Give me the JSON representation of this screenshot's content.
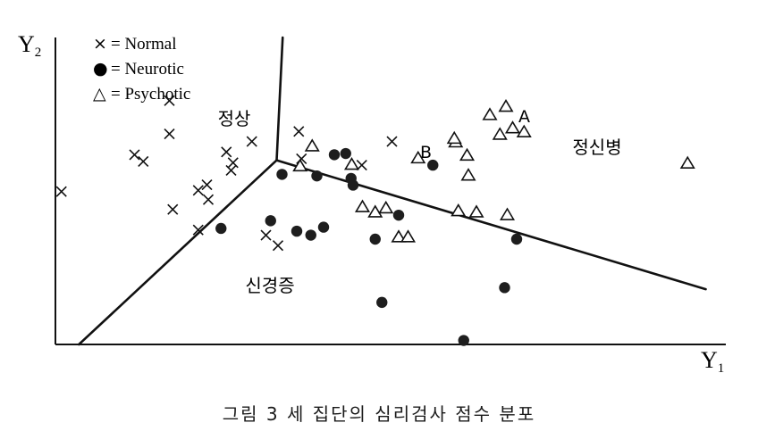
{
  "caption": "그림 3  세 집단의 심리검사 점수 분포",
  "chart_data": {
    "type": "scatter",
    "xlabel": "Y",
    "xlabel_sub": "1",
    "ylabel": "Y",
    "ylabel_sub": "2",
    "xlim": [
      0,
      100
    ],
    "ylim": [
      0,
      100
    ],
    "grid": false,
    "legend": {
      "placement": "top-left",
      "entries": [
        {
          "symbol": "×",
          "label": "= Normal",
          "series": "normal"
        },
        {
          "symbol": "●",
          "label": "= Neurotic",
          "series": "neurotic"
        },
        {
          "symbol": "△",
          "label": "= Psychotic",
          "series": "psychotic"
        }
      ]
    },
    "region_labels": [
      {
        "text": "정상",
        "x": 26.4,
        "y": 72.8
      },
      {
        "text": "정신병",
        "x": 84.5,
        "y": 64.3
      },
      {
        "text": "신경증",
        "x": 31.9,
        "y": 19.3
      }
    ],
    "point_labels": [
      {
        "text": "A",
        "x": 70.9,
        "y": 76.8
      },
      {
        "text": "B",
        "x": 56.4,
        "y": 64.7
      }
    ],
    "boundaries": [
      {
        "name": "normal-psychotic",
        "points": [
          [
            33.9,
            100
          ],
          [
            33.0,
            60
          ]
        ]
      },
      {
        "name": "normal-neurotic",
        "points": [
          [
            33.0,
            60
          ],
          [
            3.5,
            0
          ]
        ]
      },
      {
        "name": "neurotic-psychotic",
        "points": [
          [
            33.0,
            60
          ],
          [
            97.0,
            18
          ]
        ]
      }
    ],
    "series": [
      {
        "key": "normal",
        "marker": "x",
        "points": [
          [
            0.9,
            49.8
          ],
          [
            11.8,
            61.8
          ],
          [
            13.1,
            59.6
          ],
          [
            17.0,
            79.4
          ],
          [
            17.0,
            68.6
          ],
          [
            17.5,
            44.0
          ],
          [
            25.5,
            62.7
          ],
          [
            26.2,
            56.7
          ],
          [
            21.3,
            50.2
          ],
          [
            22.6,
            52.0
          ],
          [
            26.5,
            59.2
          ],
          [
            21.3,
            37.3
          ],
          [
            22.8,
            47.2
          ],
          [
            29.3,
            66.1
          ],
          [
            31.4,
            35.6
          ],
          [
            33.2,
            32.2
          ],
          [
            36.3,
            69.4
          ],
          [
            36.7,
            60.5
          ],
          [
            45.7,
            58.4
          ],
          [
            50.2,
            66.1
          ]
        ]
      },
      {
        "key": "neurotic",
        "marker": "circle",
        "points": [
          [
            24.7,
            37.8
          ],
          [
            33.8,
            55.4
          ],
          [
            39.0,
            54.9
          ],
          [
            32.1,
            40.3
          ],
          [
            36.0,
            36.9
          ],
          [
            38.1,
            35.6
          ],
          [
            40.0,
            38.2
          ],
          [
            41.6,
            61.8
          ],
          [
            43.3,
            62.2
          ],
          [
            44.1,
            54.1
          ],
          [
            44.4,
            51.9
          ],
          [
            47.7,
            34.3
          ],
          [
            51.2,
            42.1
          ],
          [
            48.7,
            13.7
          ],
          [
            56.3,
            58.4
          ],
          [
            68.8,
            34.3
          ],
          [
            67.0,
            18.5
          ],
          [
            60.9,
            1.3
          ]
        ]
      },
      {
        "key": "psychotic",
        "marker": "triangle",
        "points": [
          [
            38.3,
            64.4
          ],
          [
            36.5,
            57.9
          ],
          [
            44.2,
            58.4
          ],
          [
            45.8,
            44.6
          ],
          [
            47.7,
            42.9
          ],
          [
            49.3,
            44.2
          ],
          [
            51.2,
            34.8
          ],
          [
            52.6,
            34.8
          ],
          [
            54.1,
            60.5
          ],
          [
            59.7,
            65.7
          ],
          [
            61.4,
            61.4
          ],
          [
            61.6,
            54.9
          ],
          [
            60.1,
            43.3
          ],
          [
            62.8,
            42.9
          ],
          [
            66.3,
            68.2
          ],
          [
            64.8,
            74.6
          ],
          [
            67.2,
            77.3
          ],
          [
            67.4,
            42.0
          ],
          [
            69.9,
            69.0
          ],
          [
            68.2,
            70.3
          ],
          [
            94.3,
            58.8
          ],
          [
            59.5,
            66.9
          ]
        ]
      }
    ]
  }
}
